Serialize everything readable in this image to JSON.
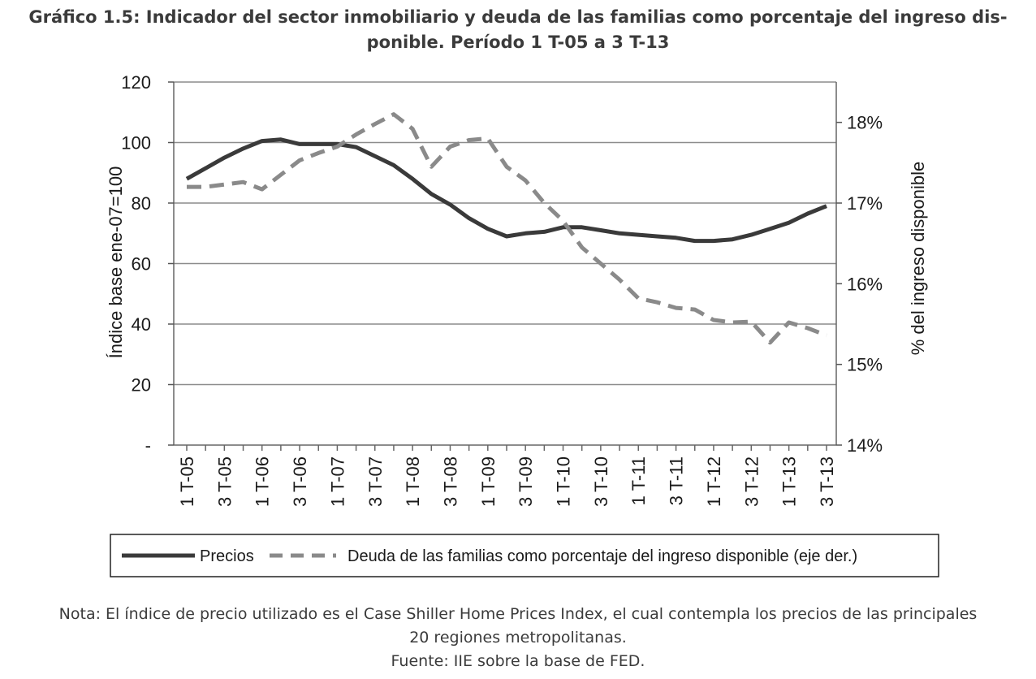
{
  "title_lines": [
    "Gráfico 1.5: Indicador del sector inmobiliario y deuda de las familias como porcentaje del ingreso dis-",
    "ponible. Período 1 T-05 a 3 T-13"
  ],
  "note_lines": [
    "Nota: El índice de precio utilizado es el Case Shiller Home Prices Index, el cual contempla los precios de las principales",
    "20 regiones metropolitanas.",
    "Fuente: IIE sobre la base de FED."
  ],
  "chart_data": {
    "type": "line",
    "ylabel": "Índice base ene-07=100",
    "y2label": "% del ingreso disponible",
    "ylim": [
      0,
      120
    ],
    "y2lim": [
      14,
      18.5
    ],
    "yticks": [
      "-",
      "20",
      "40",
      "60",
      "80",
      "100",
      "120"
    ],
    "y2ticks": [
      "14%",
      "15%",
      "16%",
      "17%",
      "18%"
    ],
    "grid": true,
    "legend": "bottom",
    "x_tick_labels": [
      "1 T-05",
      "3 T-05",
      "1 T-06",
      "3 T-06",
      "1 T-07",
      "3 T-07",
      "1 T-08",
      "3 T-08",
      "1 T-09",
      "3 T-09",
      "1 T-10",
      "3 T-10",
      "1 T-11",
      "3 T-11",
      "1 T-12",
      "3 T-12",
      "1 T-13",
      "3 T-13"
    ],
    "series": [
      {
        "name": "Precios",
        "axis": "left",
        "style": "solid",
        "color": "#3a3a3a",
        "values": [
          88,
          91.5,
          95,
          98,
          100.5,
          101,
          99.5,
          99.5,
          99.5,
          98.5,
          95.5,
          92.5,
          88,
          83,
          79.5,
          75,
          71.5,
          69,
          70,
          70.5,
          72,
          72,
          71,
          70,
          69.5,
          69,
          68.5,
          67.5,
          67.5,
          68,
          69.5,
          71.5,
          73.5,
          76.5,
          79
        ]
      },
      {
        "name": "Deuda de las familias como porcentaje del ingreso disponible (eje der.)",
        "axis": "right",
        "style": "dashed",
        "color": "#8a8a8a",
        "values": [
          17.2,
          17.2,
          17.23,
          17.26,
          17.17,
          17.35,
          17.53,
          17.62,
          17.7,
          17.85,
          17.98,
          18.1,
          17.92,
          17.45,
          17.7,
          17.78,
          17.8,
          17.45,
          17.28,
          17.0,
          16.78,
          16.45,
          16.25,
          16.05,
          15.82,
          15.77,
          15.7,
          15.68,
          15.55,
          15.52,
          15.53,
          15.27,
          15.52,
          15.45,
          15.36
        ]
      }
    ]
  }
}
